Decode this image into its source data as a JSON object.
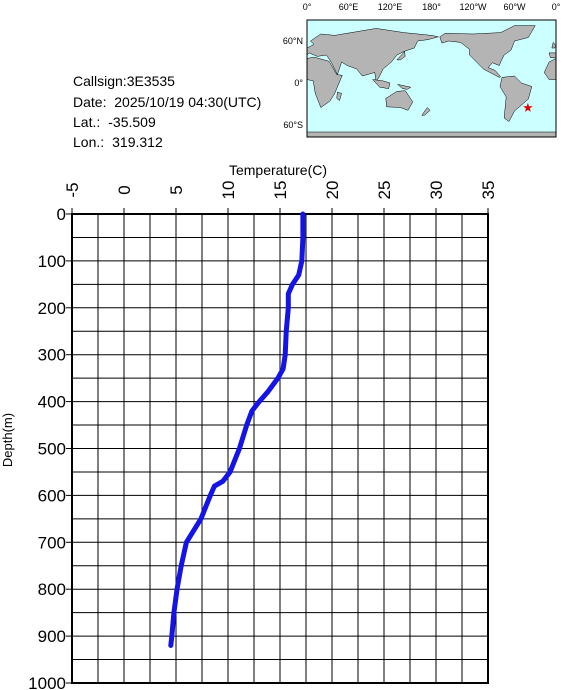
{
  "info": {
    "callsign": "Callsign:3E3535",
    "date": "Date:  2025/10/19 04:30(UTC)",
    "lat": {
      "label": "Lat.:",
      "value": -35.509
    },
    "lon": {
      "label": "Lon.:",
      "value": 319.312
    }
  },
  "map": {
    "lon_labels": [
      "0°",
      "60°E",
      "120°E",
      "180°",
      "120°W",
      "60°W",
      "0°"
    ],
    "lat_labels": [
      "60°N",
      "0°",
      "60°S"
    ]
  },
  "chart_data": {
    "type": "line",
    "x_label": "Temperature(C)",
    "y_label": "Depth(m)",
    "y": [
      0,
      20,
      50,
      100,
      130,
      150,
      170,
      200,
      250,
      300,
      330,
      350,
      380,
      400,
      420,
      450,
      500,
      550,
      570,
      580,
      600,
      650,
      700,
      750,
      800,
      850,
      900,
      920
    ],
    "series": [
      {
        "color": "#1414e6",
        "values": [
          17.2,
          17.2,
          17.2,
          17.1,
          16.8,
          16.2,
          15.8,
          15.8,
          15.6,
          15.5,
          15.3,
          14.8,
          13.8,
          13.0,
          12.3,
          11.8,
          11.1,
          10.2,
          9.5,
          8.7,
          8.3,
          7.4,
          6.0,
          5.5,
          5.1,
          4.8,
          4.6,
          4.5
        ]
      }
    ],
    "xlim": [
      -5,
      35
    ],
    "xticks": [
      -5,
      0,
      5,
      10,
      15,
      20,
      25,
      30,
      35
    ],
    "ylim": [
      0,
      1000
    ],
    "yticks": [
      0,
      100,
      200,
      300,
      400,
      500,
      600,
      700,
      800,
      900,
      1000
    ],
    "xgrid": [
      -5,
      -2.5,
      0,
      2.5,
      5,
      7.5,
      10,
      12.5,
      15,
      17.5,
      20,
      22.5,
      25,
      27.5,
      30,
      32.5,
      35
    ],
    "ygrid": [
      0,
      50,
      100,
      150,
      200,
      250,
      300,
      350,
      400,
      450,
      500,
      550,
      600,
      650,
      700,
      750,
      800,
      850,
      900,
      950,
      1000
    ]
  }
}
